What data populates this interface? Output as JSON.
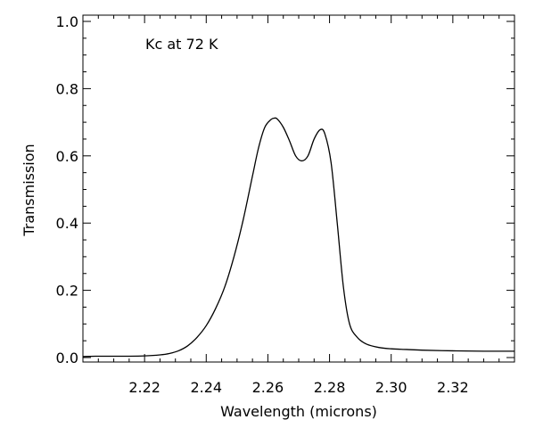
{
  "chart_data": {
    "type": "line",
    "title": "",
    "annotation": "Kc at 72 K",
    "xlabel": "Wavelength (microns)",
    "ylabel": "Transmission",
    "xlim": [
      2.2,
      2.34
    ],
    "ylim": [
      0.0,
      1.0
    ],
    "x_ticks_major": [
      2.22,
      2.24,
      2.26,
      2.28,
      2.3,
      2.32
    ],
    "x_tick_labels": [
      "2.22",
      "2.24",
      "2.26",
      "2.28",
      "2.30",
      "2.32"
    ],
    "y_ticks_major": [
      0.0,
      0.2,
      0.4,
      0.6,
      0.8,
      1.0
    ],
    "y_tick_labels": [
      "0.0",
      "0.2",
      "0.4",
      "0.6",
      "0.8",
      "1.0"
    ],
    "grid": false,
    "legend": "none",
    "line_color": "#000000",
    "series": [
      {
        "name": "",
        "x": [
          2.2,
          2.204,
          2.21,
          2.215,
          2.22,
          2.225,
          2.228,
          2.231,
          2.234,
          2.237,
          2.24,
          2.243,
          2.246,
          2.249,
          2.252,
          2.255,
          2.257,
          2.259,
          2.261,
          2.262,
          2.263,
          2.265,
          2.267,
          2.269,
          2.271,
          2.273,
          2.275,
          2.277,
          2.2785,
          2.2805,
          2.2825,
          2.2845,
          2.2865,
          2.289,
          2.292,
          2.296,
          2.3,
          2.305,
          2.31,
          2.32,
          2.33,
          2.34
        ],
        "y": [
          0.003,
          0.004,
          0.004,
          0.004,
          0.005,
          0.008,
          0.012,
          0.02,
          0.035,
          0.06,
          0.095,
          0.145,
          0.21,
          0.3,
          0.41,
          0.54,
          0.625,
          0.685,
          0.708,
          0.712,
          0.71,
          0.685,
          0.645,
          0.6,
          0.585,
          0.6,
          0.65,
          0.678,
          0.665,
          0.58,
          0.4,
          0.21,
          0.1,
          0.06,
          0.04,
          0.03,
          0.026,
          0.024,
          0.022,
          0.02,
          0.019,
          0.019
        ]
      }
    ]
  }
}
